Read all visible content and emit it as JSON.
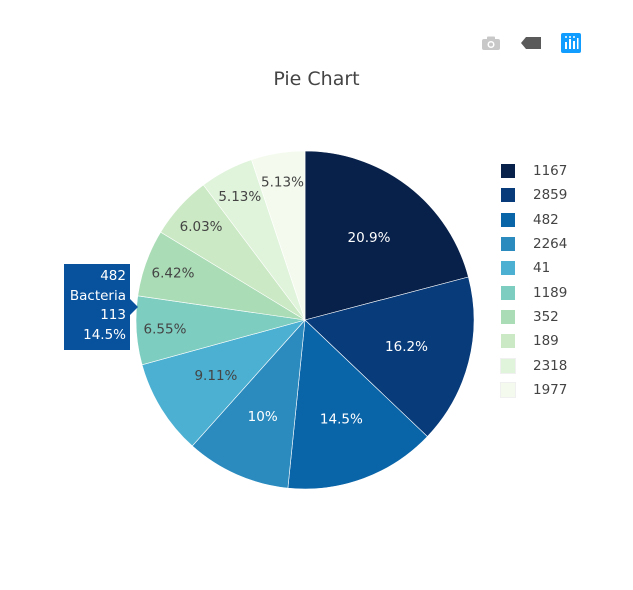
{
  "toolbar": {
    "camera_icon": "camera-icon",
    "zoom_icon": "eraser-icon",
    "plotly_icon": "plotly-logo-icon"
  },
  "chart_data": {
    "type": "pie",
    "title": "Pie Chart",
    "legend_position": "right",
    "slices": [
      {
        "label": "1167",
        "percent": "20.9%",
        "value": 20.9,
        "color": "#08214a"
      },
      {
        "label": "2859",
        "percent": "16.2%",
        "value": 16.2,
        "color": "#083b7a"
      },
      {
        "label": "482",
        "percent": "14.5%",
        "value": 14.5,
        "color": "#0a64a8"
      },
      {
        "label": "2264",
        "percent": "10%",
        "value": 10.0,
        "color": "#2b8bbf"
      },
      {
        "label": "41",
        "percent": "9.11%",
        "value": 9.11,
        "color": "#4bb0d2"
      },
      {
        "label": "1189",
        "percent": "6.55%",
        "value": 6.55,
        "color": "#7ecdc1"
      },
      {
        "label": "352",
        "percent": "6.42%",
        "value": 6.42,
        "color": "#aadcb6"
      },
      {
        "label": "189",
        "percent": "6.03%",
        "value": 6.03,
        "color": "#cbe9c4"
      },
      {
        "label": "2318",
        "percent": "5.13%",
        "value": 5.13,
        "color": "#e0f3db"
      },
      {
        "label": "1977",
        "percent": "5.13%",
        "value": 5.13,
        "color": "#f4fbee"
      }
    ]
  },
  "hover": {
    "line1": "482",
    "line2": "Bacteria",
    "line3": "113",
    "line4": "14.5%"
  }
}
